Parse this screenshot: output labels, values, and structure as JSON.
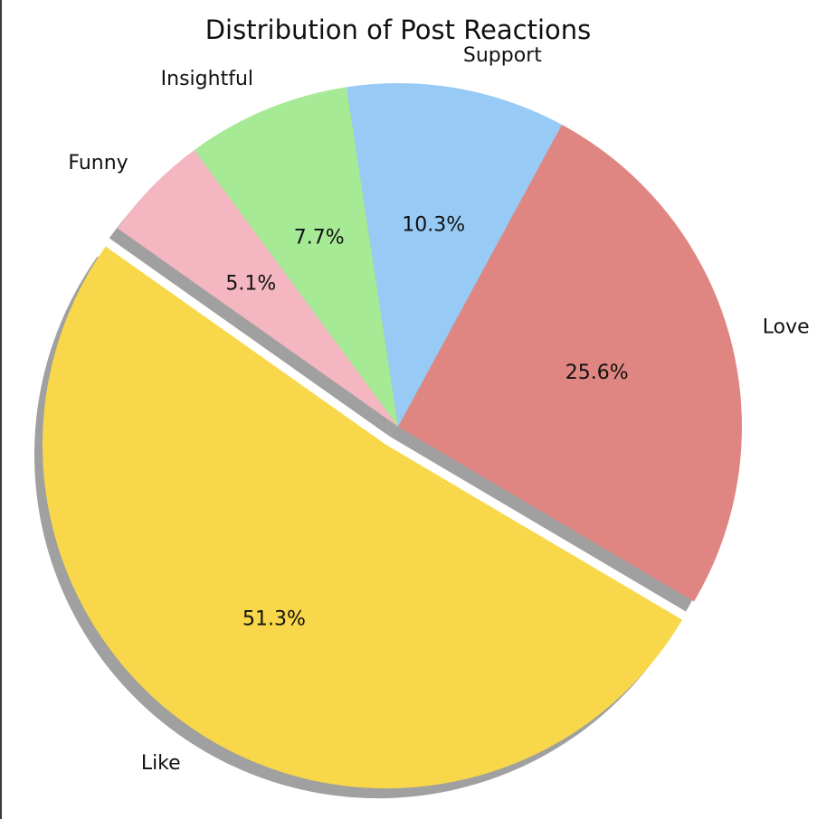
{
  "chart_data": {
    "type": "pie",
    "title": "Distribution of Post Reactions",
    "categories": [
      "Love",
      "Support",
      "Insightful",
      "Funny",
      "Like"
    ],
    "values": [
      25.6,
      10.3,
      7.7,
      5.1,
      51.3
    ],
    "percent_labels": [
      "25.6%",
      "10.3%",
      "7.7%",
      "5.1%",
      "51.3%"
    ],
    "colors": [
      "#e08682",
      "#97cbf5",
      "#a6ea96",
      "#f4b6c0",
      "#f8d84a"
    ],
    "shadow_color": "#8f8f8f",
    "exploded": [
      "Like"
    ],
    "start_angle_deg": -30.6,
    "direction": "counterclockwise",
    "shadow": true
  }
}
